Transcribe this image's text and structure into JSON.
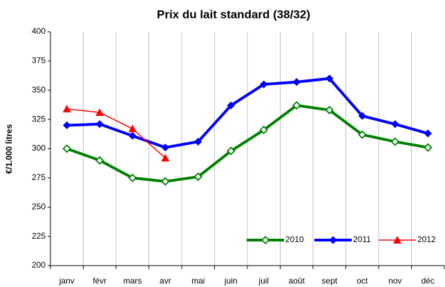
{
  "chart_data": {
    "type": "line",
    "title": "Prix du lait standard (38/32)",
    "y_label": "€/1.000 litres",
    "categories": [
      "janv",
      "févr",
      "mars",
      "avr",
      "mai",
      "juin",
      "juil",
      "août",
      "sept",
      "oct",
      "nov",
      "déc"
    ],
    "series": [
      {
        "name": "2010",
        "color": "#008000",
        "marker": "diamond-open",
        "values": [
          300,
          290,
          275,
          272,
          276,
          298,
          316,
          337,
          333,
          312,
          306,
          301
        ]
      },
      {
        "name": "2011",
        "color": "#0000ff",
        "marker": "diamond",
        "values": [
          320,
          321,
          311,
          301,
          306,
          337,
          355,
          357,
          360,
          328,
          321,
          313
        ]
      },
      {
        "name": "2012",
        "color": "#ff0000",
        "marker": "triangle",
        "values": [
          334,
          331,
          317,
          292,
          null,
          null,
          null,
          null,
          null,
          null,
          null,
          null
        ]
      }
    ],
    "ylim": [
      200,
      400
    ],
    "yticks": [
      200,
      225,
      250,
      275,
      300,
      325,
      350,
      375,
      400
    ],
    "grid": "vertical",
    "legend": "bottom-right"
  }
}
